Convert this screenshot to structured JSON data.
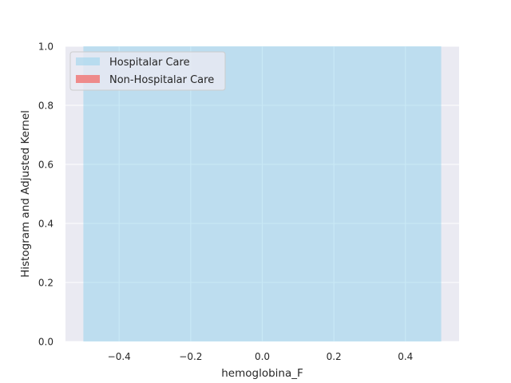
{
  "chart_data": {
    "type": "bar",
    "title": "",
    "xlabel": "hemoglobina_F",
    "ylabel": "Histogram and Adjusted Kernel",
    "xlim": [
      -0.55,
      0.55
    ],
    "ylim": [
      0.0,
      1.0
    ],
    "xticks": [
      -0.4,
      -0.2,
      0.0,
      0.2,
      0.4
    ],
    "xtick_labels": [
      "−0.4",
      "−0.2",
      "0.0",
      "0.2",
      "0.4"
    ],
    "yticks": [
      0.0,
      0.2,
      0.4,
      0.6,
      0.8,
      1.0
    ],
    "ytick_labels": [
      "0.0",
      "0.2",
      "0.4",
      "0.6",
      "0.8",
      "1.0"
    ],
    "grid": true,
    "legend_position": "top-left",
    "series": [
      {
        "name": "Hospitalar Care",
        "color": "#87ceeb",
        "opacity": 0.45,
        "bins": [
          {
            "x0": -0.5,
            "x1": 0.5,
            "height": 1.0
          }
        ]
      },
      {
        "name": "Non-Hospitalar Care",
        "color": "#f08080",
        "opacity": 0.9,
        "bins": []
      }
    ],
    "colors": {
      "background": "#eaeaf2",
      "grid": "#ffffff",
      "text": "#262626"
    }
  }
}
